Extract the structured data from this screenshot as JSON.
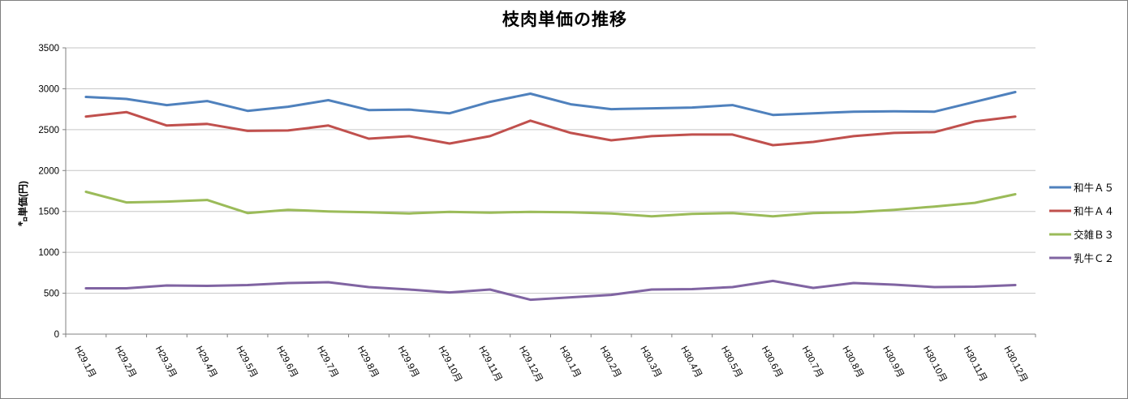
{
  "title": "枝肉単価の推移",
  "chart_data": {
    "type": "line",
    "title": "枝肉単価の推移",
    "xlabel": "",
    "ylabel": "㌔単価(円)",
    "ylim": [
      0,
      3500
    ],
    "ytick_step": 500,
    "yticks": [
      "0",
      "500",
      "1000",
      "1500",
      "2000",
      "2500",
      "3000",
      "3500"
    ],
    "grid": true,
    "legend_position": "right",
    "categories": [
      "H29.1月",
      "H29.2月",
      "H29.3月",
      "H29.4月",
      "H29.5月",
      "H29.6月",
      "H29.7月",
      "H29.8月",
      "H29.9月",
      "H29.10月",
      "H29.11月",
      "H29.12月",
      "H30.1月",
      "H30.2月",
      "H30.3月",
      "H30.4月",
      "H30.5月",
      "H30.6月",
      "H30.7月",
      "H30.8月",
      "H30.9月",
      "H30.10月",
      "H30.11月",
      "H30.12月"
    ],
    "series": [
      {
        "name": "和牛Ａ５",
        "color": "#4F81BD",
        "values": [
          2900,
          2875,
          2800,
          2850,
          2730,
          2780,
          2860,
          2740,
          2745,
          2700,
          2840,
          2940,
          2810,
          2750,
          2760,
          2770,
          2800,
          2680,
          2700,
          2720,
          2725,
          2720,
          2840,
          2960
        ]
      },
      {
        "name": "和牛Ａ４",
        "color": "#C0504D",
        "values": [
          2660,
          2715,
          2550,
          2570,
          2485,
          2490,
          2550,
          2390,
          2420,
          2330,
          2420,
          2610,
          2460,
          2370,
          2420,
          2440,
          2440,
          2310,
          2350,
          2420,
          2460,
          2470,
          2600,
          2660
        ]
      },
      {
        "name": "交雑Ｂ３",
        "color": "#9BBB59",
        "values": [
          1740,
          1610,
          1620,
          1640,
          1480,
          1520,
          1500,
          1490,
          1475,
          1495,
          1485,
          1495,
          1490,
          1475,
          1440,
          1470,
          1480,
          1440,
          1480,
          1490,
          1520,
          1560,
          1605,
          1710
        ]
      },
      {
        "name": "乳牛Ｃ２",
        "color": "#8064A2",
        "values": [
          560,
          560,
          595,
          590,
          600,
          625,
          635,
          575,
          545,
          510,
          545,
          420,
          450,
          480,
          545,
          550,
          575,
          650,
          565,
          625,
          605,
          575,
          580,
          600
        ]
      }
    ]
  },
  "colors": {
    "grid": "#C6C6C6",
    "axis": "#808080",
    "tick_text": "#000000",
    "frame_border": "#7F7F7F"
  }
}
